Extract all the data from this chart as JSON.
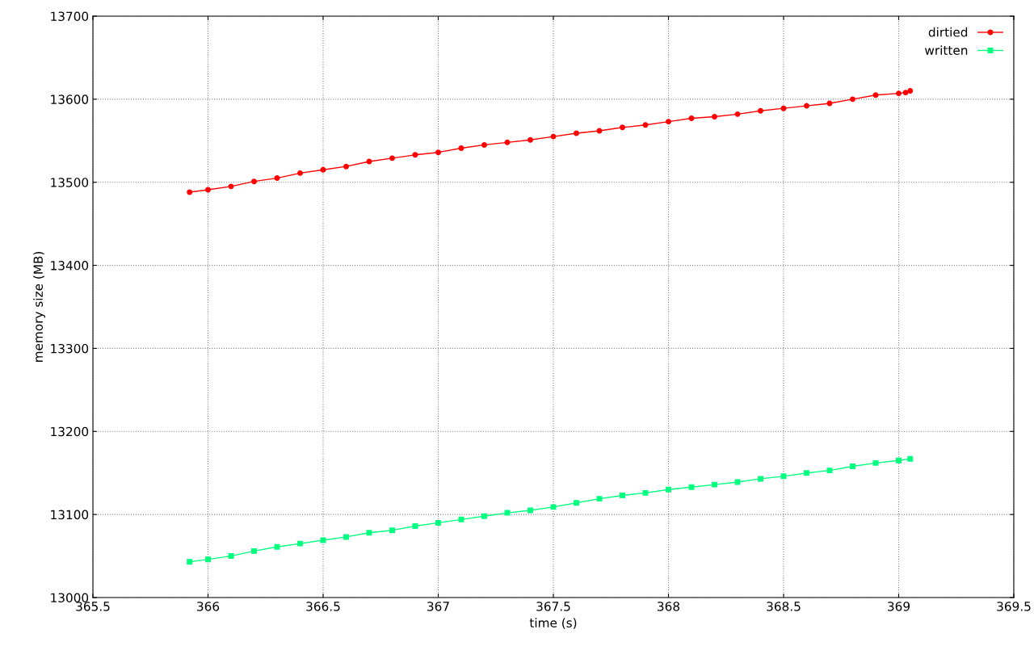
{
  "chart_data": {
    "type": "line",
    "xlabel": "time (s)",
    "ylabel": "memory size (MB)",
    "xlim": [
      365.5,
      369.5
    ],
    "xticks": [
      365.5,
      366,
      366.5,
      367,
      367.5,
      368,
      368.5,
      369,
      369.5
    ],
    "ylim": [
      13000,
      13700
    ],
    "yticks": [
      13000,
      13100,
      13200,
      13300,
      13400,
      13500,
      13600,
      13700
    ],
    "grid": true,
    "legend": "top right",
    "series": [
      {
        "name": "dirtied",
        "color": "#ff0000",
        "marker": "circle",
        "x": [
          365.92,
          366.0,
          366.1,
          366.2,
          366.3,
          366.4,
          366.5,
          366.6,
          366.7,
          366.8,
          366.9,
          367.0,
          367.1,
          367.2,
          367.3,
          367.4,
          367.5,
          367.6,
          367.7,
          367.8,
          367.9,
          368.0,
          368.1,
          368.2,
          368.3,
          368.4,
          368.5,
          368.6,
          368.7,
          368.8,
          368.9,
          369.0,
          369.03,
          369.05
        ],
        "values": [
          13488,
          13491,
          13495,
          13501,
          13505,
          13511,
          13515,
          13519,
          13525,
          13529,
          13533,
          13536,
          13541,
          13545,
          13548,
          13551,
          13555,
          13559,
          13562,
          13566,
          13569,
          13573,
          13577,
          13579,
          13582,
          13586,
          13589,
          13592,
          13595,
          13600,
          13605,
          13607,
          13608,
          13610
        ]
      },
      {
        "name": "written",
        "color": "#00ff7f",
        "marker": "square",
        "x": [
          365.92,
          366.0,
          366.1,
          366.2,
          366.3,
          366.4,
          366.5,
          366.6,
          366.7,
          366.8,
          366.9,
          367.0,
          367.1,
          367.2,
          367.3,
          367.4,
          367.5,
          367.6,
          367.7,
          367.8,
          367.9,
          368.0,
          368.1,
          368.2,
          368.3,
          368.4,
          368.5,
          368.6,
          368.7,
          368.8,
          368.9,
          369.0,
          369.05
        ],
        "values": [
          13043,
          13046,
          13050,
          13056,
          13061,
          13065,
          13069,
          13073,
          13078,
          13081,
          13086,
          13090,
          13094,
          13098,
          13102,
          13105,
          13109,
          13114,
          13119,
          13123,
          13126,
          13130,
          13133,
          13136,
          13139,
          13143,
          13146,
          13150,
          13153,
          13158,
          13162,
          13165,
          13167
        ]
      }
    ]
  }
}
